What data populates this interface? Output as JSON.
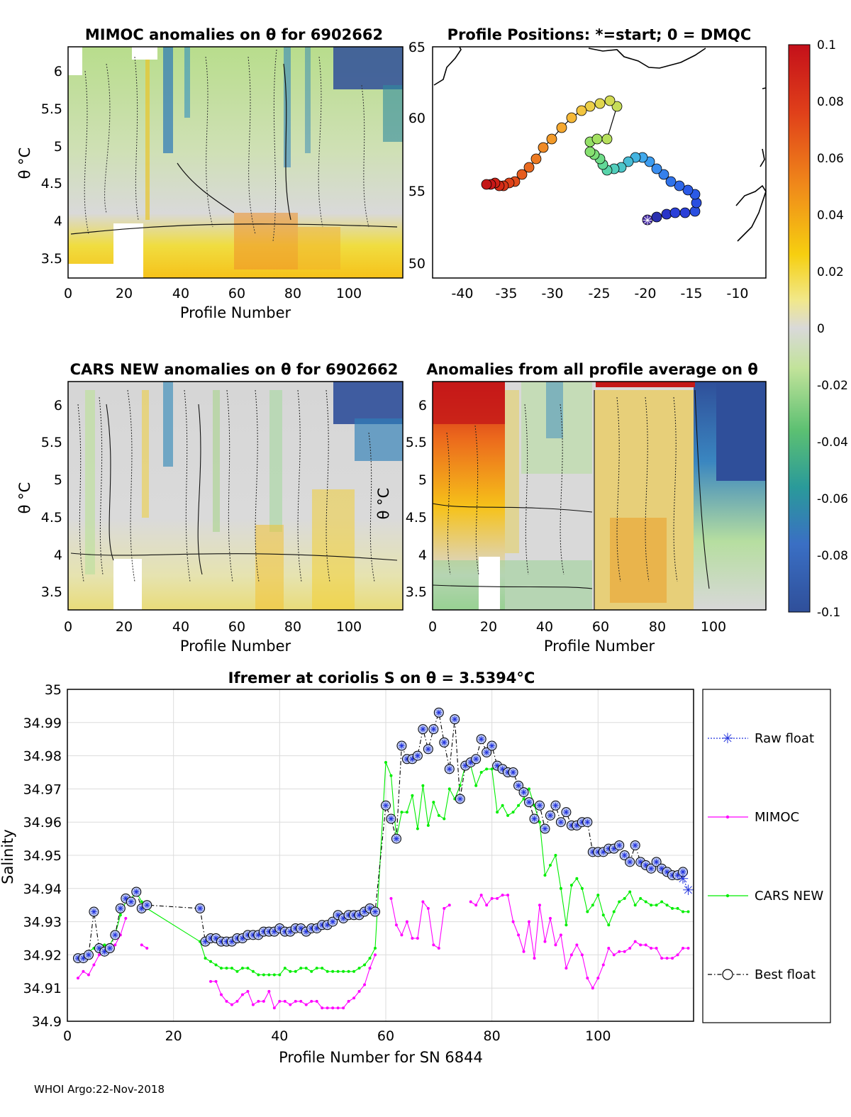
{
  "footer": "WHOI Argo:22-Nov-2018",
  "panels": {
    "mimoc": {
      "title": "MIMOC anomalies on θ  for 6902662",
      "xlabel": "Profile Number",
      "ylabel": "θ °C",
      "xticks": [
        "0",
        "20",
        "40",
        "60",
        "80",
        "100"
      ],
      "yticks": [
        "3.5",
        "4",
        "4.5",
        "5",
        "5.5",
        "6"
      ]
    },
    "positions": {
      "title": "Profile Positions: *=start; 0 = DMQC",
      "xticks": [
        "-40",
        "-35",
        "-30",
        "-25",
        "-20",
        "-15",
        "-10"
      ],
      "yticks": [
        "50",
        "55",
        "60",
        "65"
      ]
    },
    "cars": {
      "title": "CARS NEW anomalies on θ for 6902662",
      "xlabel": "Profile Number",
      "ylabel": "θ °C",
      "xticks": [
        "0",
        "20",
        "40",
        "60",
        "80",
        "100"
      ],
      "yticks": [
        "3.5",
        "4",
        "4.5",
        "5",
        "5.5",
        "6"
      ],
      "overlay": "θ °C"
    },
    "allprof": {
      "title": "Anomalies from all profile average on θ",
      "xlabel": "Profile Number",
      "xticks": [
        "0",
        "20",
        "40",
        "60",
        "80",
        "100"
      ],
      "yticks": [
        "3.5",
        "4",
        "4.5",
        "5",
        "5.5",
        "6"
      ]
    }
  },
  "colorbar": {
    "ticks": [
      "0.1",
      "0.08",
      "0.06",
      "0.04",
      "0.02",
      "0",
      "-0.02",
      "-0.04",
      "-0.06",
      "-0.08",
      "-0.1"
    ]
  },
  "colors": {
    "raw": "#2233dd",
    "mimoc": "#ff00ff",
    "cars": "#00ee00",
    "best": "#000000"
  },
  "chart_data": [
    {
      "type": "line",
      "title": "Ifremer at coriolis S on θ = 3.5394°C",
      "xlabel": "Profile Number for SN 6844",
      "ylabel": "Salinity",
      "xlim": [
        0,
        118
      ],
      "ylim": [
        34.9,
        35
      ],
      "xticks": [
        "0",
        "20",
        "40",
        "60",
        "80",
        "100"
      ],
      "yticks": [
        "34.9",
        "34.91",
        "34.92",
        "34.93",
        "34.94",
        "34.95",
        "34.96",
        "34.97",
        "34.98",
        "34.99",
        "35"
      ],
      "legend": [
        "Raw float",
        "MIMOC",
        "CARS NEW",
        "Best float"
      ],
      "legend_position": "right",
      "series": [
        {
          "name": "Best float",
          "x": [
            2,
            3,
            4,
            5,
            6,
            7,
            8,
            9,
            10,
            11,
            12,
            13,
            14,
            15,
            25,
            26,
            27,
            28,
            29,
            30,
            31,
            32,
            33,
            34,
            35,
            36,
            37,
            38,
            39,
            40,
            41,
            42,
            43,
            44,
            45,
            46,
            47,
            48,
            49,
            50,
            51,
            52,
            53,
            54,
            55,
            56,
            57,
            58,
            60,
            61,
            62,
            63,
            64,
            65,
            66,
            67,
            68,
            69,
            70,
            71,
            72,
            73,
            74,
            75,
            76,
            77,
            78,
            79,
            80,
            81,
            82,
            83,
            84,
            85,
            86,
            87,
            88,
            89,
            90,
            91,
            92,
            93,
            94,
            95,
            96,
            97,
            98,
            99,
            100,
            101,
            102,
            103,
            104,
            105,
            106,
            107,
            108,
            109,
            110,
            111,
            112,
            113,
            114,
            115,
            116
          ],
          "y": [
            34.919,
            34.919,
            34.92,
            34.933,
            34.922,
            34.921,
            34.922,
            34.926,
            34.934,
            34.937,
            34.936,
            34.939,
            34.934,
            34.935,
            34.934,
            34.924,
            34.925,
            34.925,
            34.924,
            34.924,
            34.924,
            34.925,
            34.925,
            34.926,
            34.926,
            34.926,
            34.927,
            34.927,
            34.927,
            34.928,
            34.927,
            34.927,
            34.928,
            34.928,
            34.927,
            34.928,
            34.928,
            34.929,
            34.929,
            34.93,
            34.932,
            34.931,
            34.932,
            34.932,
            34.932,
            34.933,
            34.934,
            34.933,
            34.965,
            34.961,
            34.955,
            34.983,
            34.979,
            34.979,
            34.98,
            34.988,
            34.982,
            34.988,
            34.993,
            34.984,
            34.976,
            34.991,
            34.967,
            34.977,
            34.978,
            34.979,
            34.985,
            34.981,
            34.983,
            34.977,
            34.976,
            34.975,
            34.975,
            34.971,
            34.969,
            34.966,
            34.961,
            34.965,
            34.958,
            34.962,
            34.965,
            34.96,
            34.963,
            34.959,
            34.959,
            34.96,
            34.96,
            34.951,
            34.951,
            34.951,
            34.952,
            34.952,
            34.953,
            34.95,
            34.948,
            34.953,
            34.948,
            34.947,
            34.946,
            34.948,
            34.946,
            34.945,
            34.944,
            34.944,
            34.945
          ]
        },
        {
          "name": "Raw float",
          "x": [
            116,
            117
          ],
          "y": [
            34.943,
            34.9395
          ]
        },
        {
          "name": "CARS NEW",
          "x": [
            2,
            3,
            4,
            5,
            6,
            7,
            8,
            9,
            10,
            11,
            12,
            13,
            14,
            15,
            25,
            26,
            27,
            28,
            29,
            30,
            31,
            32,
            33,
            34,
            35,
            36,
            37,
            38,
            39,
            40,
            41,
            42,
            43,
            44,
            45,
            46,
            47,
            48,
            49,
            50,
            51,
            52,
            53,
            54,
            55,
            56,
            57,
            58,
            60,
            61,
            62,
            63,
            64,
            65,
            66,
            67,
            68,
            69,
            70,
            71,
            72,
            73,
            74,
            75,
            76,
            77,
            78,
            79,
            80,
            81,
            82,
            83,
            84,
            85,
            86,
            87,
            88,
            89,
            90,
            91,
            92,
            93,
            94,
            95,
            96,
            97,
            98,
            99,
            100,
            101,
            102,
            103,
            104,
            105,
            106,
            107,
            108,
            109,
            110,
            111,
            112,
            113,
            114,
            115,
            116,
            117
          ],
          "y": [
            34.919,
            34.92,
            34.921,
            34.922,
            34.923,
            34.923,
            34.923,
            34.926,
            34.932,
            34.936,
            34.937,
            34.939,
            34.936,
            34.934,
            34.924,
            34.919,
            34.918,
            34.917,
            34.916,
            34.916,
            34.916,
            34.915,
            34.916,
            34.916,
            34.915,
            34.914,
            34.914,
            34.914,
            34.914,
            34.914,
            34.916,
            34.915,
            34.915,
            34.916,
            34.916,
            34.915,
            34.916,
            34.916,
            34.915,
            34.915,
            34.915,
            34.915,
            34.915,
            34.915,
            34.916,
            34.917,
            34.919,
            34.922,
            34.978,
            34.974,
            34.955,
            34.963,
            34.963,
            34.968,
            34.958,
            34.971,
            34.959,
            34.966,
            34.962,
            34.961,
            34.97,
            34.967,
            34.971,
            34.977,
            34.977,
            34.971,
            34.975,
            34.976,
            34.976,
            34.963,
            34.965,
            34.962,
            34.963,
            34.965,
            34.967,
            34.97,
            34.965,
            34.96,
            34.944,
            34.947,
            34.95,
            34.94,
            34.929,
            34.941,
            34.943,
            34.94,
            34.933,
            34.935,
            34.938,
            34.932,
            34.929,
            34.933,
            34.936,
            34.937,
            34.939,
            34.935,
            34.937,
            34.936,
            34.935,
            34.935,
            34.936,
            34.935,
            34.934,
            34.934,
            34.933,
            34.933
          ],
          "gaps_after": []
        },
        {
          "name": "MIMOC",
          "x": [
            2,
            3,
            4,
            5,
            6,
            7,
            8,
            9,
            10,
            11,
            14,
            15,
            27,
            28,
            29,
            30,
            31,
            32,
            33,
            34,
            35,
            36,
            37,
            38,
            39,
            40,
            41,
            42,
            43,
            44,
            45,
            46,
            47,
            48,
            49,
            50,
            51,
            52,
            53,
            54,
            55,
            56,
            57,
            58,
            61,
            62,
            63,
            64,
            65,
            66,
            67,
            68,
            69,
            70,
            71,
            72,
            76,
            77,
            78,
            79,
            80,
            81,
            82,
            83,
            84,
            85,
            86,
            87,
            88,
            89,
            90,
            91,
            92,
            93,
            94,
            95,
            96,
            97,
            98,
            99,
            100,
            101,
            102,
            103,
            104,
            105,
            106,
            107,
            108,
            109,
            110,
            111,
            112,
            113,
            114,
            115,
            116,
            117
          ],
          "y": [
            34.913,
            34.915,
            34.914,
            34.917,
            34.92,
            34.922,
            34.921,
            34.923,
            34.926,
            34.931,
            34.923,
            34.922,
            34.912,
            34.912,
            34.908,
            34.906,
            34.905,
            34.906,
            34.908,
            34.909,
            34.905,
            34.906,
            34.906,
            34.909,
            34.904,
            34.906,
            34.906,
            34.905,
            34.906,
            34.906,
            34.905,
            34.906,
            34.906,
            34.904,
            34.904,
            34.904,
            34.904,
            34.904,
            34.906,
            34.907,
            34.909,
            34.911,
            34.916,
            34.92,
            34.937,
            34.929,
            34.926,
            34.93,
            34.925,
            34.925,
            34.936,
            34.934,
            34.923,
            34.922,
            34.934,
            34.935,
            34.936,
            34.935,
            34.938,
            34.935,
            34.937,
            34.937,
            34.938,
            34.938,
            34.93,
            34.926,
            34.921,
            34.93,
            34.919,
            34.935,
            34.924,
            34.931,
            34.923,
            34.926,
            34.916,
            34.92,
            34.923,
            34.92,
            34.913,
            34.91,
            34.913,
            34.917,
            34.922,
            34.92,
            34.921,
            34.921,
            34.922,
            34.924,
            34.923,
            34.923,
            34.922,
            34.922,
            34.919,
            34.919,
            34.919,
            34.92,
            34.922,
            34.922
          ],
          "breaks_before": [
            14,
            27,
            61,
            76
          ]
        }
      ]
    }
  ]
}
